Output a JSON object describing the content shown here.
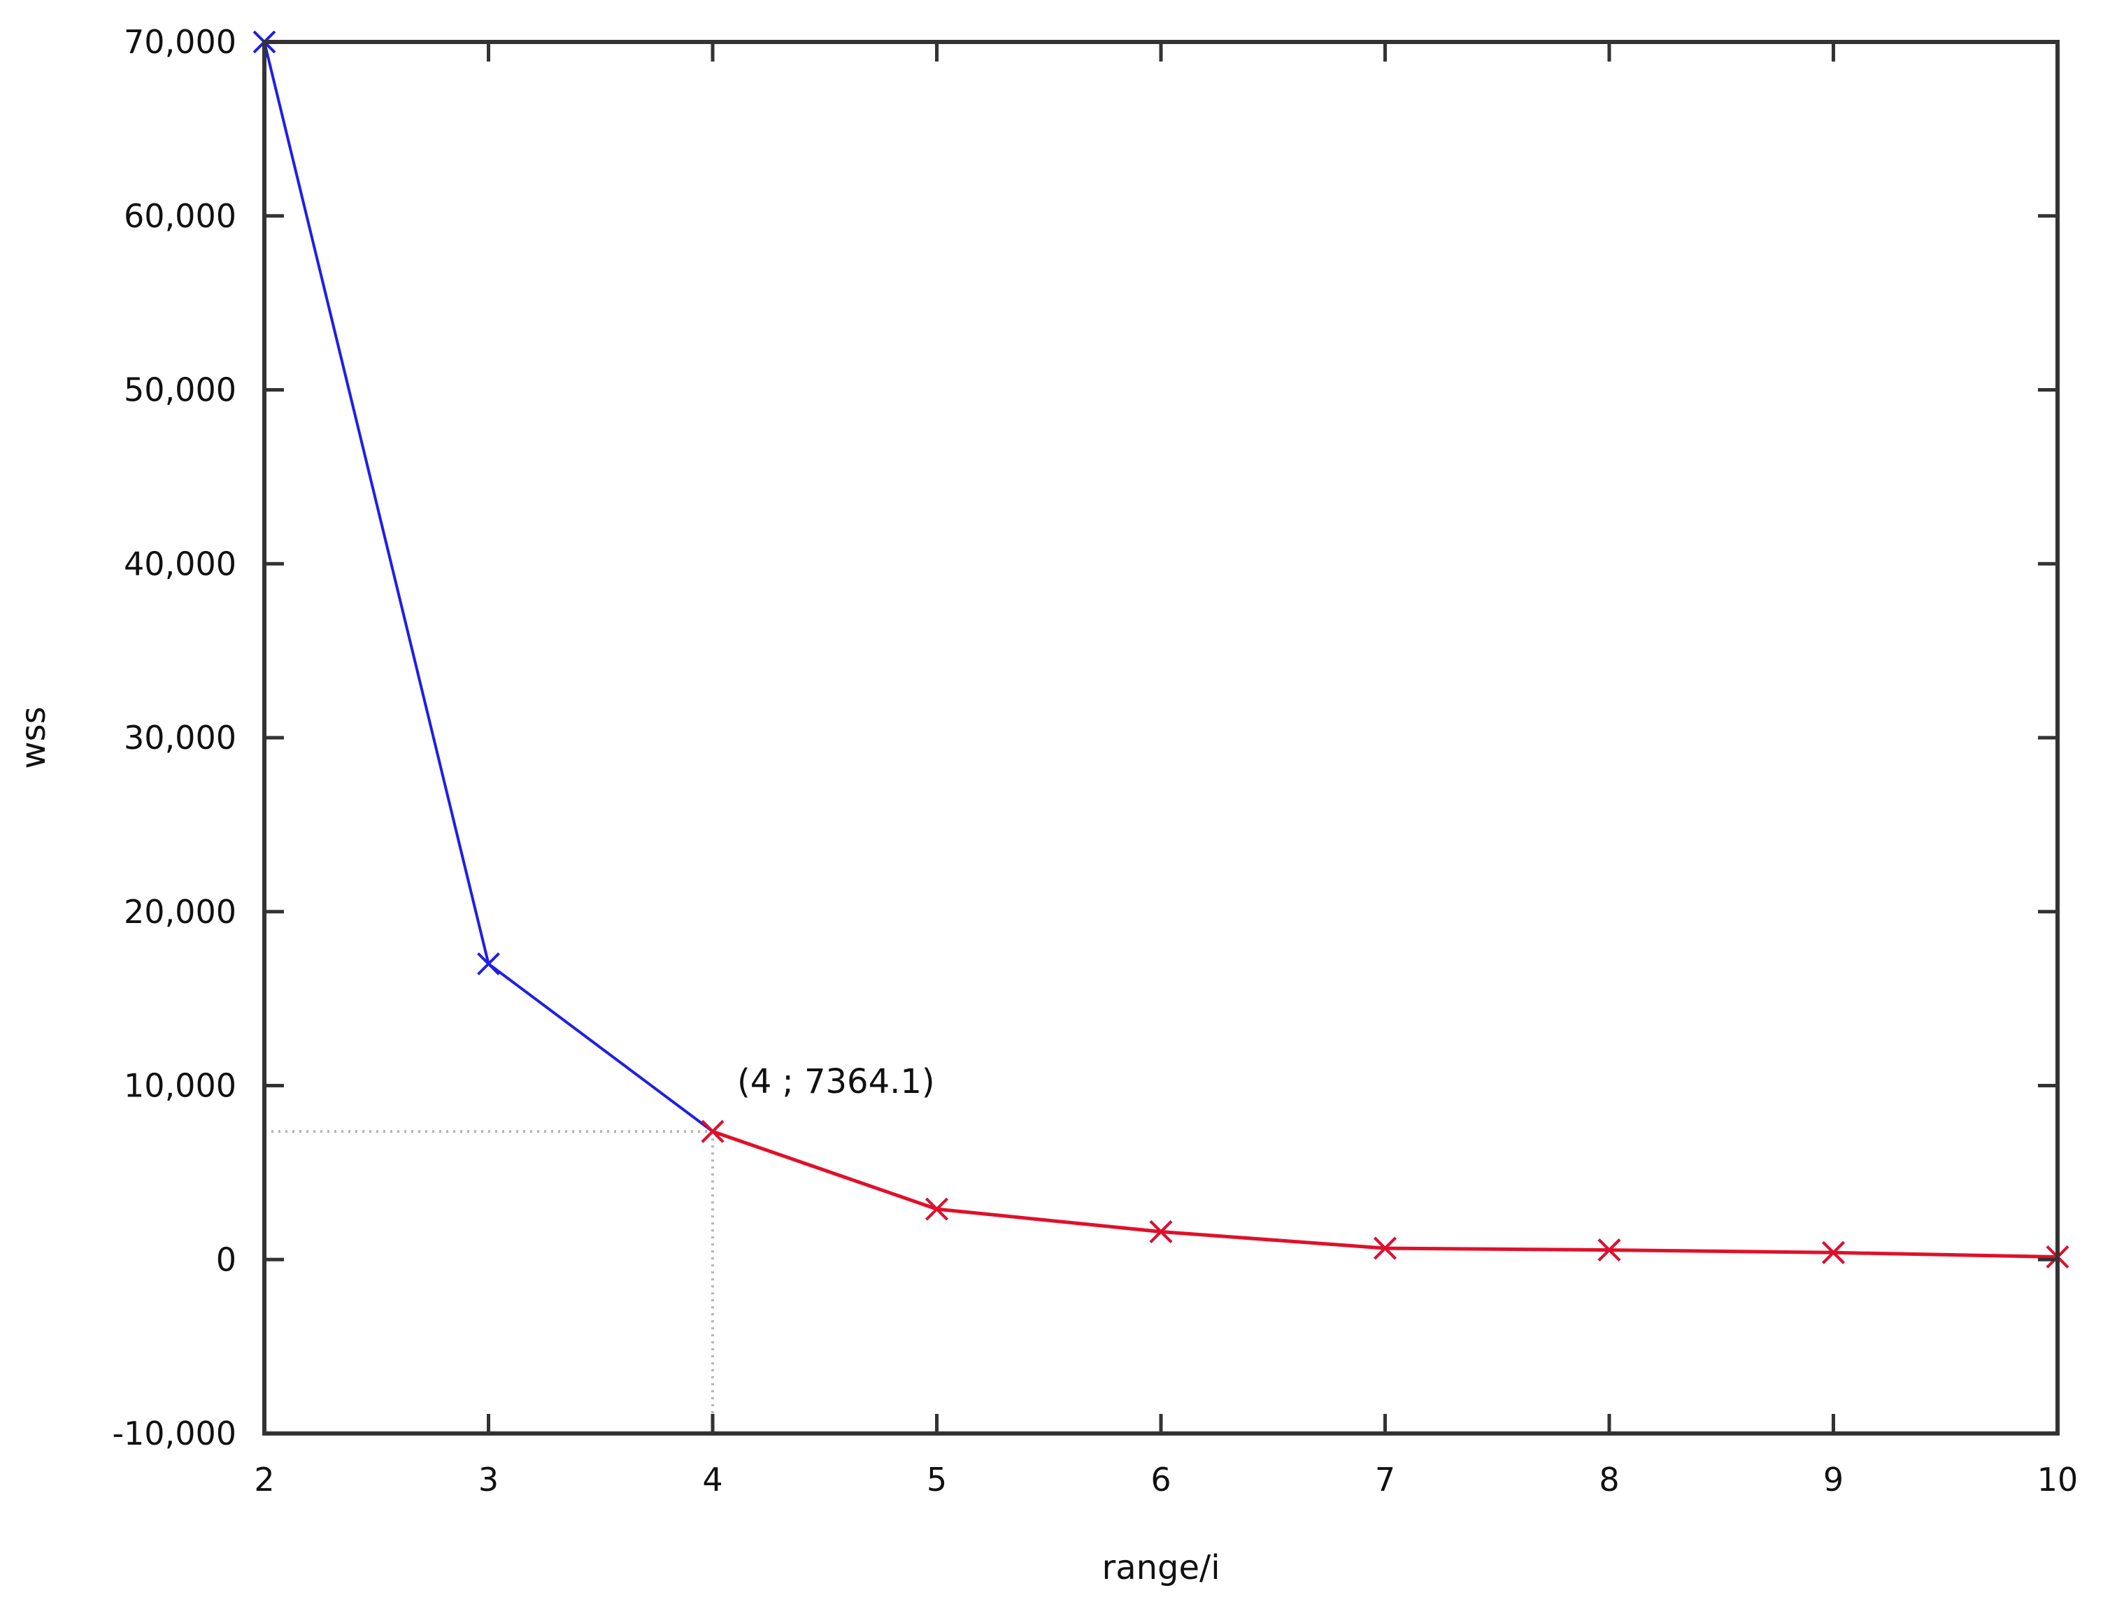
{
  "chart_data": {
    "type": "line",
    "title": "",
    "xlabel": "range/i",
    "ylabel": "wss",
    "xlim": [
      2,
      10
    ],
    "ylim": [
      -10000,
      70000
    ],
    "x_ticks": [
      2,
      3,
      4,
      5,
      6,
      7,
      8,
      9,
      10
    ],
    "x_tick_labels": [
      "2",
      "3",
      "4",
      "5",
      "6",
      "7",
      "8",
      "9",
      "10"
    ],
    "y_ticks": [
      -10000,
      0,
      10000,
      20000,
      30000,
      40000,
      50000,
      60000,
      70000
    ],
    "y_tick_labels": [
      "-10,000",
      "0",
      "10,000",
      "20,000",
      "30,000",
      "40,000",
      "50,000",
      "60,000",
      "70,000"
    ],
    "grid": false,
    "series": [
      {
        "color": "#1f1fe6",
        "marker": "x",
        "x": [
          2,
          3,
          4,
          5,
          6,
          7,
          8,
          9,
          10
        ],
        "y": [
          70000,
          17000,
          7364.1,
          2900,
          1600,
          650,
          550,
          400,
          150
        ]
      },
      {
        "color": "#e0102a",
        "marker": "x",
        "x": [
          4,
          5,
          6,
          7,
          8,
          9,
          10
        ],
        "y": [
          7364.1,
          2900,
          1600,
          650,
          550,
          400,
          150
        ]
      }
    ],
    "annotation": {
      "text": "(4 ; 7364.1)",
      "x": 4,
      "y": 7364.1
    }
  }
}
